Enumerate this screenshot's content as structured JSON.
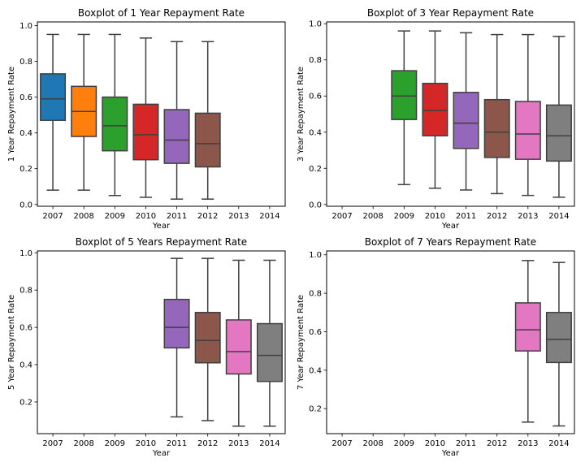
{
  "palette": {
    "2007": "#1f77b4",
    "2008": "#ff7f0e",
    "2009": "#2ca02c",
    "2010": "#d62728",
    "2011": "#9467bd",
    "2012": "#8c564b",
    "2013": "#e377c2",
    "2014": "#7f7f7f",
    "edge": "#3f3f3f",
    "axes": "#000000"
  },
  "chart_data": [
    {
      "type": "box",
      "title": "Boxplot of 1 Year Repayment Rate",
      "xlabel": "Year",
      "ylabel": "1 Year Repayment Rate",
      "categories": [
        "2007",
        "2008",
        "2009",
        "2010",
        "2011",
        "2012",
        "2013",
        "2014"
      ],
      "ylim": [
        -0.01,
        1.02
      ],
      "yticks": [
        0.0,
        0.2,
        0.4,
        0.6,
        0.8,
        1.0
      ],
      "ytick_labels": [
        "0.0",
        "0.2",
        "0.4",
        "0.6",
        "0.8",
        "1.0"
      ],
      "grid": false,
      "boxes": [
        {
          "category": "2007",
          "whislo": 0.08,
          "q1": 0.47,
          "med": 0.59,
          "q3": 0.73,
          "whishi": 0.95
        },
        {
          "category": "2008",
          "whislo": 0.08,
          "q1": 0.38,
          "med": 0.52,
          "q3": 0.66,
          "whishi": 0.95
        },
        {
          "category": "2009",
          "whislo": 0.05,
          "q1": 0.3,
          "med": 0.44,
          "q3": 0.6,
          "whishi": 0.95
        },
        {
          "category": "2010",
          "whislo": 0.04,
          "q1": 0.25,
          "med": 0.39,
          "q3": 0.56,
          "whishi": 0.93
        },
        {
          "category": "2011",
          "whislo": 0.03,
          "q1": 0.23,
          "med": 0.36,
          "q3": 0.53,
          "whishi": 0.91
        },
        {
          "category": "2012",
          "whislo": 0.03,
          "q1": 0.21,
          "med": 0.34,
          "q3": 0.51,
          "whishi": 0.91
        }
      ]
    },
    {
      "type": "box",
      "title": "Boxplot of 3 Year Repayment Rate",
      "xlabel": "Year",
      "ylabel": "3 Year Repayment Rate",
      "categories": [
        "2007",
        "2008",
        "2009",
        "2010",
        "2011",
        "2012",
        "2013",
        "2014"
      ],
      "ylim": [
        -0.01,
        1.01
      ],
      "yticks": [
        0.0,
        0.2,
        0.4,
        0.6,
        0.8,
        1.0
      ],
      "ytick_labels": [
        "0.0",
        "0.2",
        "0.4",
        "0.6",
        "0.8",
        "1.0"
      ],
      "grid": false,
      "boxes": [
        {
          "category": "2009",
          "whislo": 0.11,
          "q1": 0.47,
          "med": 0.6,
          "q3": 0.74,
          "whishi": 0.96
        },
        {
          "category": "2010",
          "whislo": 0.09,
          "q1": 0.38,
          "med": 0.52,
          "q3": 0.67,
          "whishi": 0.96
        },
        {
          "category": "2011",
          "whislo": 0.08,
          "q1": 0.31,
          "med": 0.45,
          "q3": 0.62,
          "whishi": 0.95
        },
        {
          "category": "2012",
          "whislo": 0.06,
          "q1": 0.26,
          "med": 0.4,
          "q3": 0.58,
          "whishi": 0.94
        },
        {
          "category": "2013",
          "whislo": 0.05,
          "q1": 0.25,
          "med": 0.39,
          "q3": 0.57,
          "whishi": 0.94
        },
        {
          "category": "2014",
          "whislo": 0.04,
          "q1": 0.24,
          "med": 0.38,
          "q3": 0.55,
          "whishi": 0.93
        }
      ]
    },
    {
      "type": "box",
      "title": "Boxplot of 5 Years Repayment Rate",
      "xlabel": "Year",
      "ylabel": "5 Year Repayment Rate",
      "categories": [
        "2007",
        "2008",
        "2009",
        "2010",
        "2011",
        "2012",
        "2013",
        "2014"
      ],
      "ylim": [
        0.03,
        1.01
      ],
      "yticks": [
        0.2,
        0.4,
        0.6,
        0.8,
        1.0
      ],
      "ytick_labels": [
        "0.2",
        "0.4",
        "0.6",
        "0.8",
        "1.0"
      ],
      "grid": false,
      "boxes": [
        {
          "category": "2011",
          "whislo": 0.12,
          "q1": 0.49,
          "med": 0.6,
          "q3": 0.75,
          "whishi": 0.97
        },
        {
          "category": "2012",
          "whislo": 0.1,
          "q1": 0.41,
          "med": 0.53,
          "q3": 0.68,
          "whishi": 0.97
        },
        {
          "category": "2013",
          "whislo": 0.07,
          "q1": 0.35,
          "med": 0.47,
          "q3": 0.64,
          "whishi": 0.96
        },
        {
          "category": "2014",
          "whislo": 0.07,
          "q1": 0.31,
          "med": 0.45,
          "q3": 0.62,
          "whishi": 0.96
        }
      ]
    },
    {
      "type": "box",
      "title": "Boxplot of 7 Years Repayment Rate",
      "xlabel": "Year",
      "ylabel": "7 Year Repayment Rate",
      "categories": [
        "2007",
        "2008",
        "2009",
        "2010",
        "2011",
        "2012",
        "2013",
        "2014"
      ],
      "ylim": [
        0.07,
        1.02
      ],
      "yticks": [
        0.2,
        0.4,
        0.6,
        0.8,
        1.0
      ],
      "ytick_labels": [
        "0.2",
        "0.4",
        "0.6",
        "0.8",
        "1.0"
      ],
      "grid": false,
      "boxes": [
        {
          "category": "2013",
          "whislo": 0.13,
          "q1": 0.5,
          "med": 0.61,
          "q3": 0.75,
          "whishi": 0.97
        },
        {
          "category": "2014",
          "whislo": 0.11,
          "q1": 0.44,
          "med": 0.56,
          "q3": 0.7,
          "whishi": 0.96
        }
      ]
    }
  ]
}
